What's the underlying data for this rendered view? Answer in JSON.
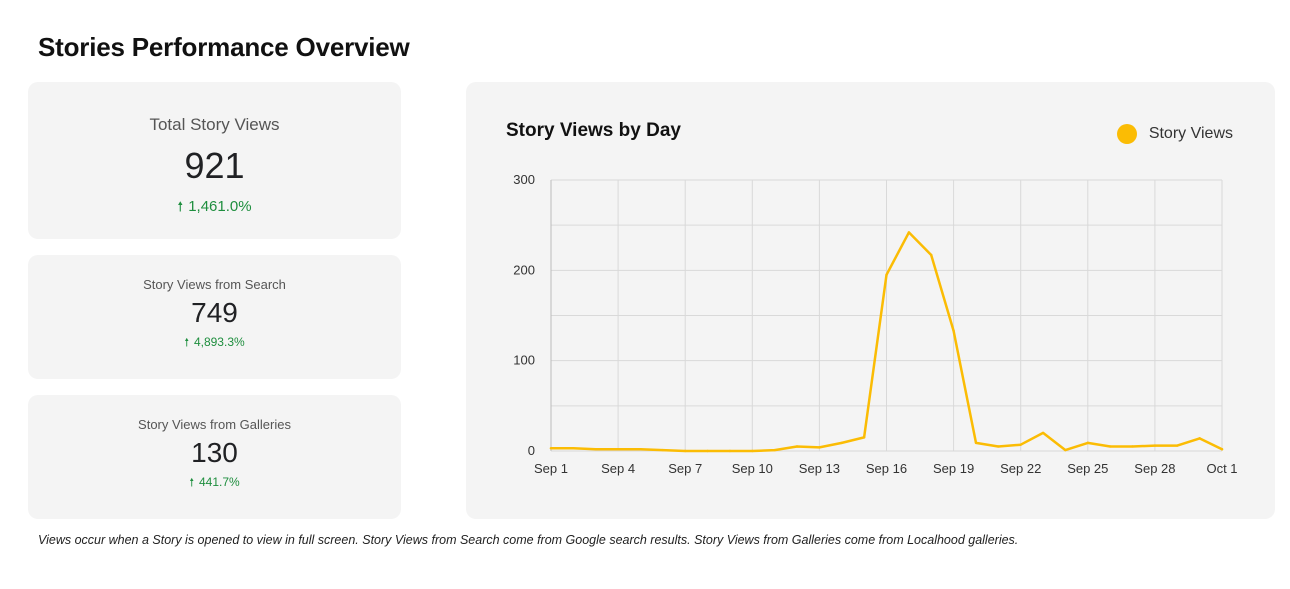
{
  "page": {
    "title": "Stories Performance Overview",
    "footnote": "Views occur when a Story is opened to view in full screen. Story Views from Search come from Google search results. Story Views from Galleries come from Localhood galleries."
  },
  "kpis": {
    "total": {
      "label": "Total Story Views",
      "value": "921",
      "delta": "1,461.0%",
      "delta_icon": "arrow-up-icon"
    },
    "search": {
      "label": "Story Views from Search",
      "value": "749",
      "delta": "4,893.3%",
      "delta_icon": "arrow-up-icon"
    },
    "galleries": {
      "label": "Story Views from Galleries",
      "value": "130",
      "delta": "441.7%",
      "delta_icon": "arrow-up-icon"
    }
  },
  "colors": {
    "series": "#fbbc04",
    "delta_positive": "#1e8e3e",
    "grid": "#d9d9d9",
    "card_bg": "#f4f4f4"
  },
  "chart_data": {
    "type": "line",
    "title": "Story Views by Day",
    "legend_position": "top-right",
    "grid": true,
    "xlabel": "",
    "ylabel": "",
    "x_tick_labels": [
      "Sep 1",
      "Sep 4",
      "Sep 7",
      "Sep 10",
      "Sep 13",
      "Sep 16",
      "Sep 19",
      "Sep 22",
      "Sep 25",
      "Sep 28",
      "Oct 1"
    ],
    "y_ticks": [
      0,
      100,
      200,
      300
    ],
    "ylim": [
      0,
      300
    ],
    "x": [
      "Sep 1",
      "Sep 2",
      "Sep 3",
      "Sep 4",
      "Sep 5",
      "Sep 6",
      "Sep 7",
      "Sep 8",
      "Sep 9",
      "Sep 10",
      "Sep 11",
      "Sep 12",
      "Sep 13",
      "Sep 14",
      "Sep 15",
      "Sep 16",
      "Sep 17",
      "Sep 18",
      "Sep 19",
      "Sep 20",
      "Sep 21",
      "Sep 22",
      "Sep 23",
      "Sep 24",
      "Sep 25",
      "Sep 26",
      "Sep 27",
      "Sep 28",
      "Sep 29",
      "Sep 30",
      "Oct 1"
    ],
    "series": [
      {
        "name": "Story Views",
        "values": [
          3,
          3,
          2,
          2,
          2,
          1,
          0,
          0,
          0,
          0,
          1,
          5,
          4,
          9,
          15,
          195,
          242,
          217,
          133,
          9,
          5,
          7,
          20,
          1,
          9,
          5,
          5,
          6,
          6,
          14,
          2
        ]
      }
    ]
  }
}
